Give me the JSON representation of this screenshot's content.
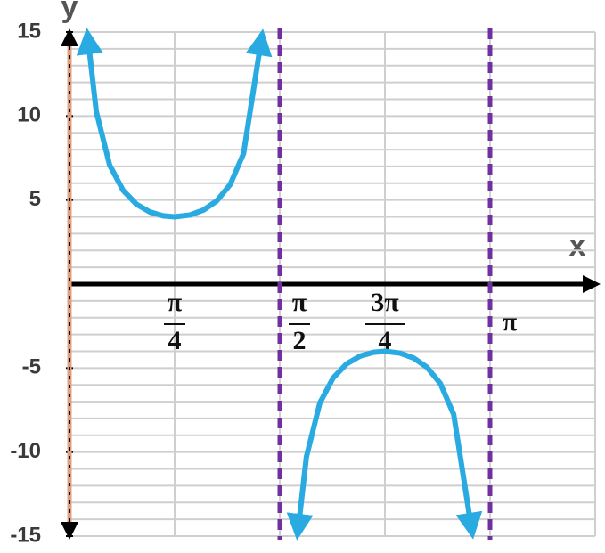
{
  "chart_data": {
    "type": "line",
    "x_label": "x",
    "y_label": "y",
    "xlim": [
      0,
      3.92699
    ],
    "ylim": [
      -15,
      15
    ],
    "xticks": [
      {
        "value": 0.785398,
        "label": {
          "numerator": "π",
          "denominator": "4"
        }
      },
      {
        "value": 1.570796,
        "label": {
          "numerator": "π",
          "denominator": "2"
        }
      },
      {
        "value": 2.356194,
        "label": {
          "numerator": "3π",
          "denominator": "4"
        }
      },
      {
        "value": 3.141593,
        "label": "π"
      }
    ],
    "yticks": [
      -15,
      -10,
      -5,
      5,
      10,
      15
    ],
    "grid": true,
    "minor_grid_step": 1,
    "asymptotes": [
      1.570796,
      3.141593
    ],
    "asymptote_color": "#7030a0",
    "axis_color": "#000000",
    "series": [
      {
        "color": "#29abe2",
        "x": [
          0.14,
          0.2,
          0.3,
          0.4,
          0.5,
          0.6,
          0.7,
          0.785,
          0.9,
          1.0,
          1.1,
          1.2,
          1.3,
          1.43,
          null,
          1.71,
          1.77,
          1.87,
          1.97,
          2.07,
          2.17,
          2.27,
          2.356,
          2.47,
          2.57,
          2.67,
          2.77,
          2.87,
          3.0
        ],
        "values": [
          14.47,
          10.27,
          7.08,
          5.58,
          4.75,
          4.29,
          4.06,
          4.0,
          4.11,
          4.4,
          4.95,
          5.92,
          7.76,
          14.41,
          null,
          -14.47,
          -10.27,
          -7.08,
          -5.58,
          -4.75,
          -4.29,
          -4.06,
          -4.0,
          -4.11,
          -4.4,
          -4.95,
          -5.92,
          -7.76,
          -14.41
        ]
      }
    ]
  }
}
